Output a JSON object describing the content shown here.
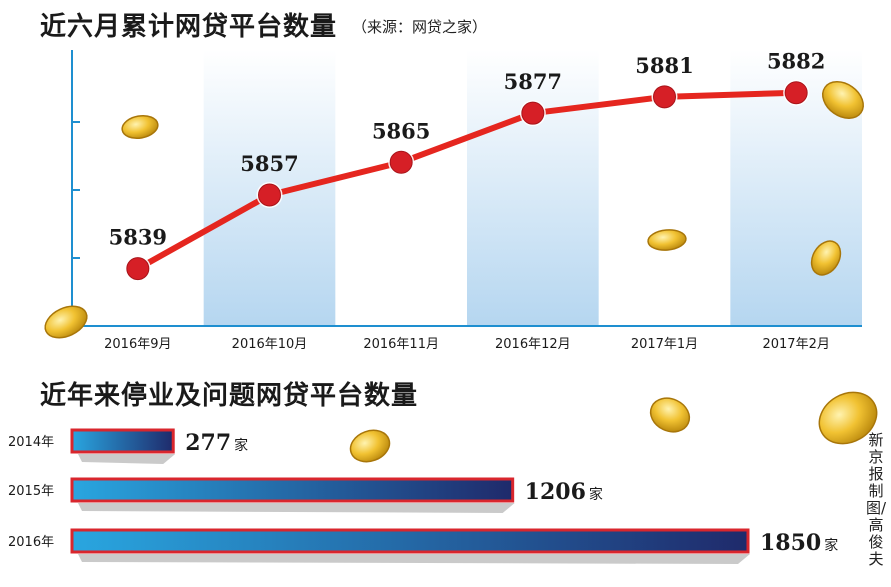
{
  "title": "近六月累计网贷平台数量",
  "source": "（来源：网贷之家）",
  "title2": "近年来停业及问题网贷平台数量",
  "credit": "新京报制图/高俊夫",
  "colors": {
    "line": "#e5261f",
    "point": "#d61f26",
    "band": "#b5d6f0",
    "bar_start": "#29a6e0",
    "bar_end": "#1f2a6b",
    "bar_border": "#d9262d",
    "axis": "#1e8fd0"
  },
  "chart_data": [
    {
      "type": "line",
      "title": "近六月累计网贷平台数量",
      "categories": [
        "2016年9月",
        "2016年10月",
        "2016年11月",
        "2016年12月",
        "2017年1月",
        "2017年2月"
      ],
      "values": [
        5839,
        5857,
        5865,
        5877,
        5881,
        5882
      ],
      "data_labels": [
        "5839",
        "5857",
        "5865",
        "5877",
        "5881",
        "5882"
      ],
      "grid": false
    },
    {
      "type": "bar",
      "orientation": "horizontal",
      "title": "近年来停业及问题网贷平台数量",
      "categories": [
        "2014年",
        "2015年",
        "2016年"
      ],
      "values": [
        277,
        1206,
        1850
      ],
      "data_labels": [
        "277",
        "1206",
        "1850"
      ],
      "unit": "家"
    }
  ]
}
